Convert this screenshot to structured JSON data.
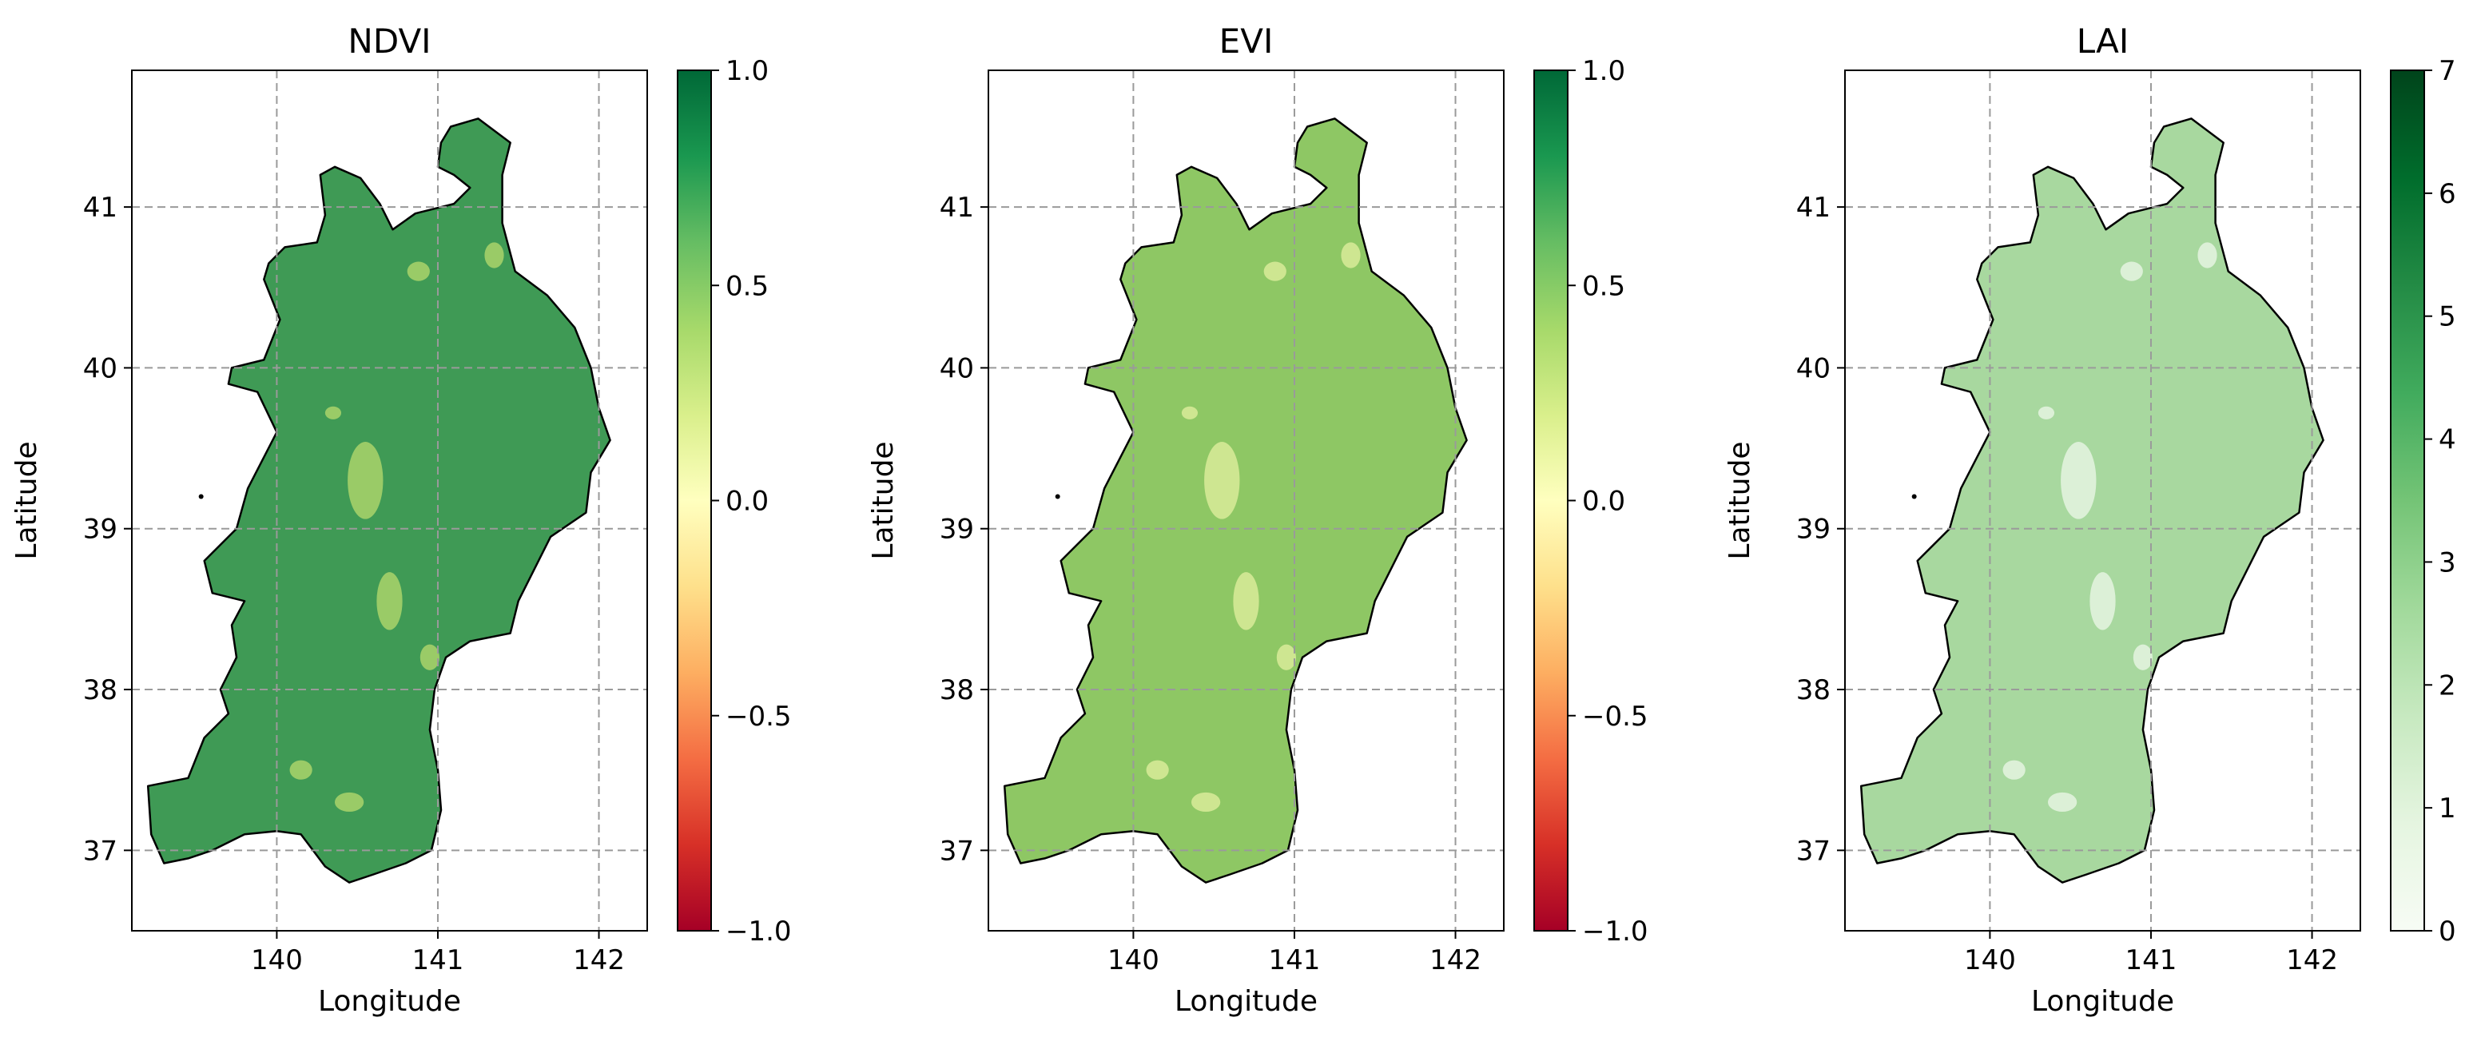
{
  "panels": [
    {
      "title": "NDVI",
      "xlabel": "Longitude",
      "ylabel": "Latitude",
      "x_ticks": [
        "140",
        "141",
        "142"
      ],
      "y_ticks": [
        "37",
        "38",
        "39",
        "40",
        "41"
      ],
      "colorbar": {
        "colormap": "RdYlGn",
        "range": [
          -1.0,
          1.0
        ],
        "tick_values": [
          -1.0,
          -0.5,
          0.0,
          0.5,
          1.0
        ],
        "tick_labels": [
          "−1.0",
          "−0.5",
          "0.0",
          "0.5",
          "1.0"
        ],
        "stops": [
          "#a50026",
          "#d73027",
          "#f46d43",
          "#fdae61",
          "#fee08b",
          "#ffffbf",
          "#d9ef8b",
          "#a6d96a",
          "#66bd63",
          "#1a9850",
          "#006837"
        ]
      },
      "map_fill": "#3f9a55",
      "map_spot_fill": "#b9db6e"
    },
    {
      "title": "EVI",
      "xlabel": "Longitude",
      "ylabel": "Latitude",
      "x_ticks": [
        "140",
        "141",
        "142"
      ],
      "y_ticks": [
        "37",
        "38",
        "39",
        "40",
        "41"
      ],
      "colorbar": {
        "colormap": "RdYlGn",
        "range": [
          -1.0,
          1.0
        ],
        "tick_values": [
          -1.0,
          -0.5,
          0.0,
          0.5,
          1.0
        ],
        "tick_labels": [
          "−1.0",
          "−0.5",
          "0.0",
          "0.5",
          "1.0"
        ],
        "stops": [
          "#a50026",
          "#d73027",
          "#f46d43",
          "#fdae61",
          "#fee08b",
          "#ffffbf",
          "#d9ef8b",
          "#a6d96a",
          "#66bd63",
          "#1a9850",
          "#006837"
        ]
      },
      "map_fill": "#8ec764",
      "map_spot_fill": "#e3f0a0"
    },
    {
      "title": "LAI",
      "xlabel": "Longitude",
      "ylabel": "Latitude",
      "x_ticks": [
        "140",
        "141",
        "142"
      ],
      "y_ticks": [
        "37",
        "38",
        "39",
        "40",
        "41"
      ],
      "colorbar": {
        "colormap": "Greens",
        "range": [
          0,
          7
        ],
        "tick_values": [
          0,
          1,
          2,
          3,
          4,
          5,
          6,
          7
        ],
        "tick_labels": [
          "0",
          "1",
          "2",
          "3",
          "4",
          "5",
          "6",
          "7"
        ],
        "stops": [
          "#f7fcf5",
          "#e5f5e0",
          "#c7e9c0",
          "#a1d99b",
          "#74c476",
          "#41ab5d",
          "#238b45",
          "#006d2c",
          "#00441b"
        ]
      },
      "map_fill": "#a8d89f",
      "map_spot_fill": "#eef8ea"
    }
  ]
}
